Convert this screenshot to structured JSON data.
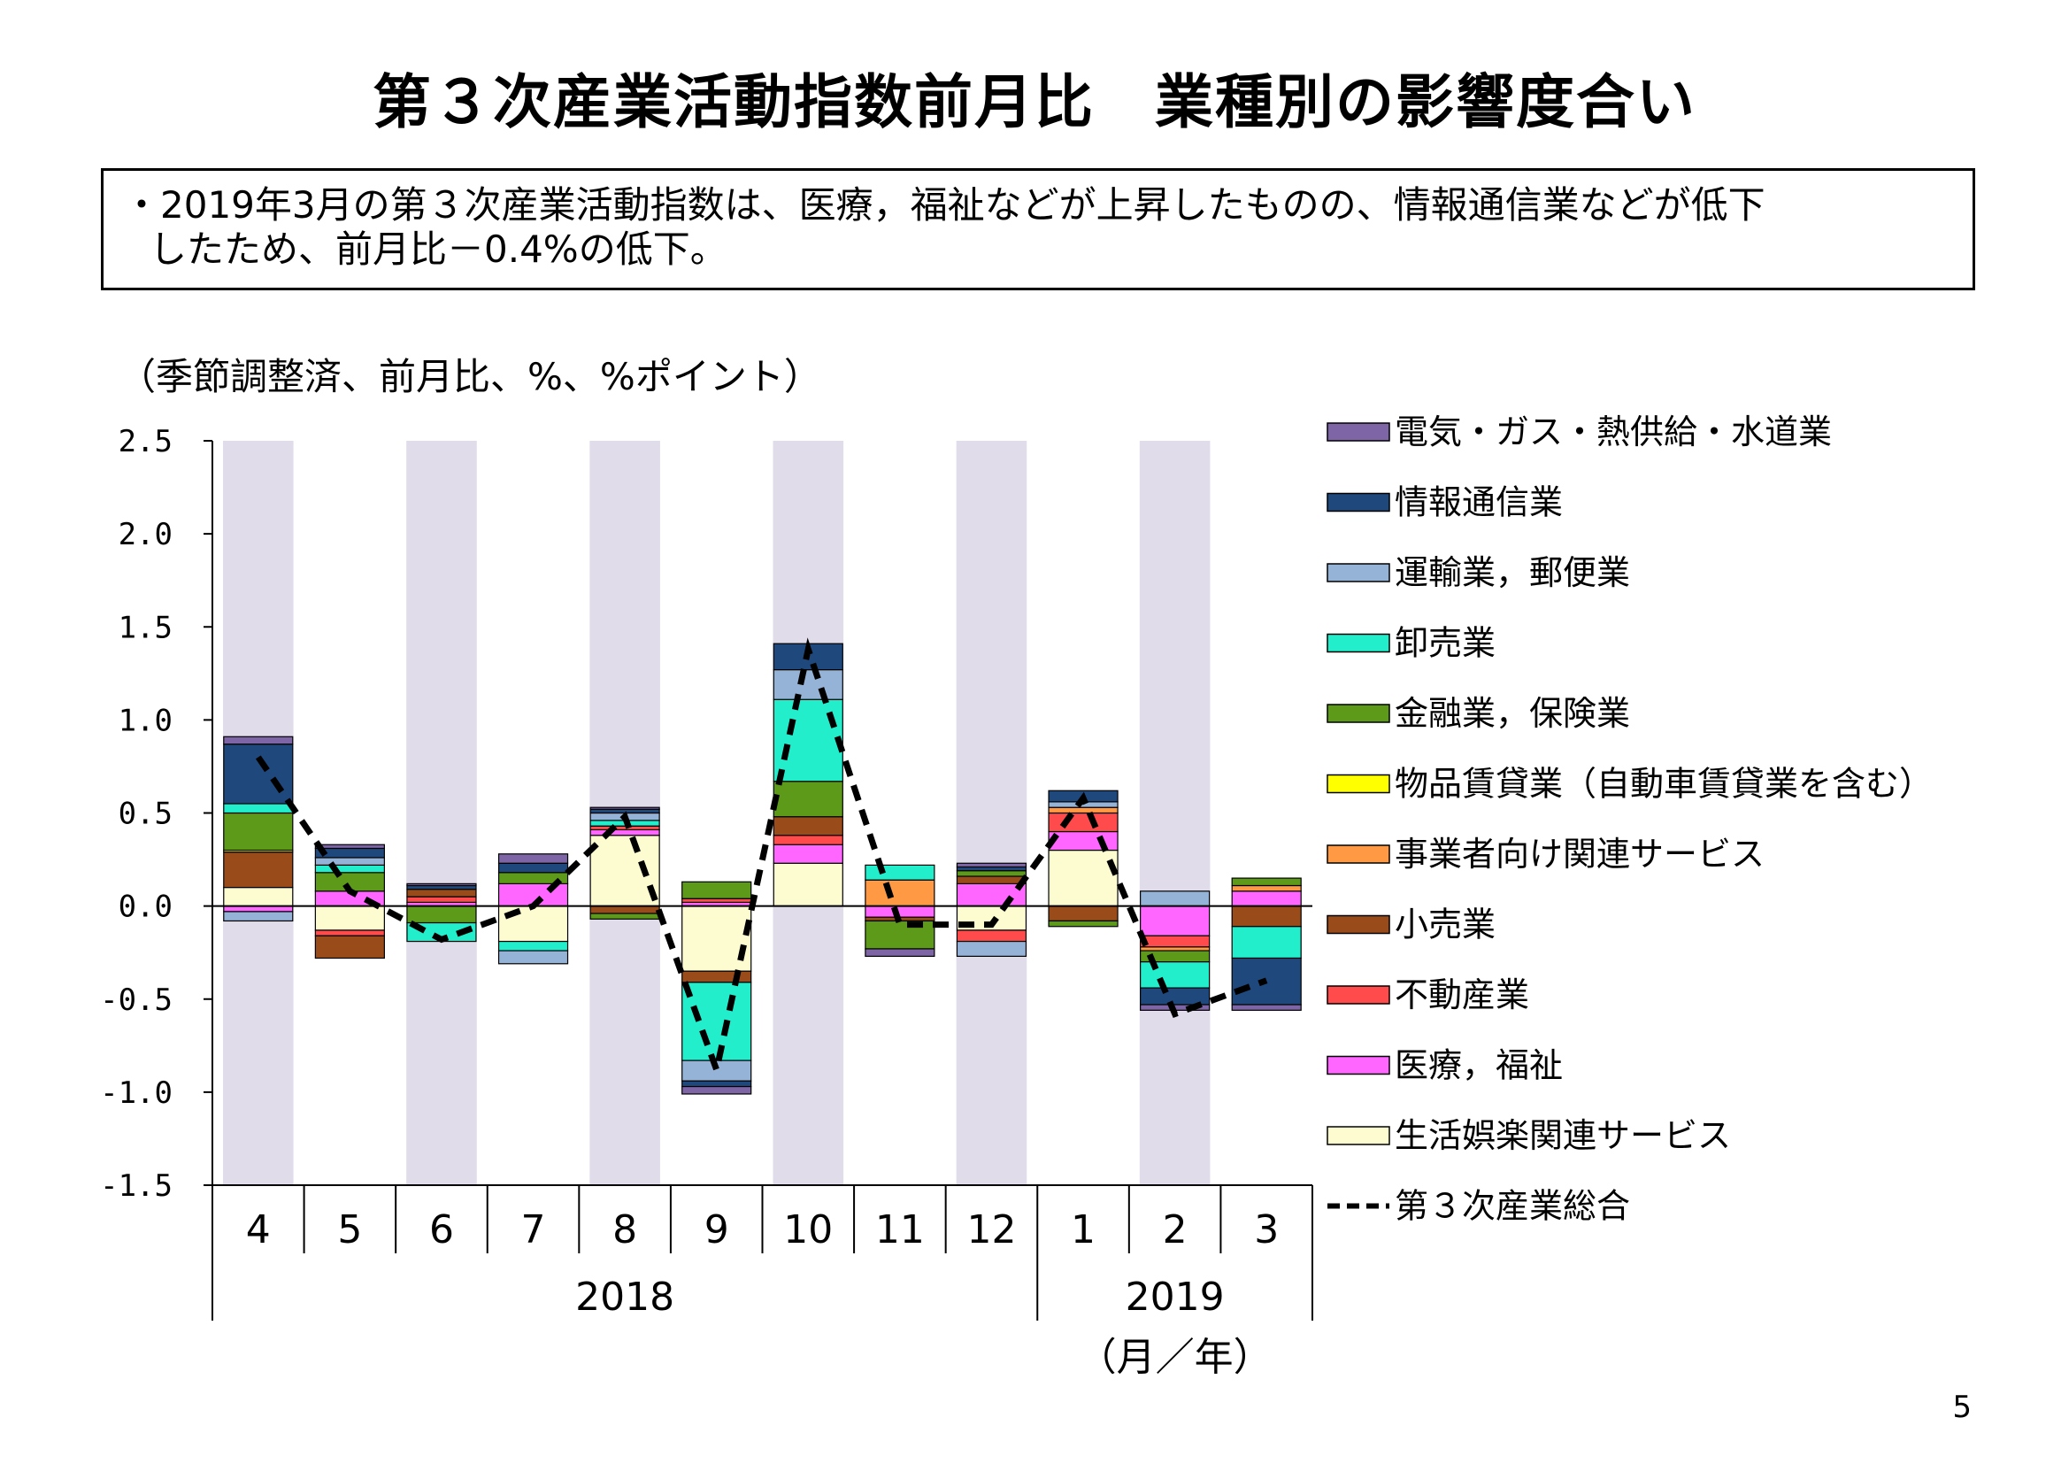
{
  "title": "第３次産業活動指数前月比　業種別の影響度合い",
  "summary": [
    "・2019年3月の第３次産業活動指数は、医療，福祉などが上昇したものの、情報通信業などが低下",
    "したため、前月比－0.4%の低下。"
  ],
  "units_note": "（季節調整済、前月比、%、%ポイント）",
  "page_number": "5",
  "chart_data": {
    "type": "bar",
    "stacked": true,
    "categories": [
      "4",
      "5",
      "6",
      "7",
      "8",
      "9",
      "10",
      "11",
      "12",
      "1",
      "2",
      "3"
    ],
    "years": [
      {
        "label": "2018",
        "from": 0,
        "to": 8
      },
      {
        "label": "2019",
        "from": 9,
        "to": 11
      }
    ],
    "x_unit": "（月／年）",
    "yticks": [
      "2.5",
      "2.0",
      "1.5",
      "1.0",
      "0.5",
      "0.0",
      "-0.5",
      "-1.0",
      "-1.5"
    ],
    "ylim": [
      -1.5,
      2.5
    ],
    "shaded_categories": [
      0,
      2,
      4,
      6,
      8,
      10
    ],
    "shade_color": "#e0dcea",
    "series": [
      {
        "name": "生活娯楽関連サービス",
        "color": "#fdfbd0",
        "values": [
          0.1,
          -0.13,
          0.0,
          -0.19,
          0.38,
          -0.35,
          0.23,
          0.0,
          -0.13,
          0.3,
          0.0,
          0.0
        ]
      },
      {
        "name": "医療，福祉",
        "color": "#ff66ff",
        "values": [
          -0.03,
          0.08,
          0.02,
          0.12,
          0.03,
          0.02,
          0.1,
          -0.06,
          0.12,
          0.1,
          -0.16,
          0.08
        ]
      },
      {
        "name": "不動産業",
        "color": "#ff4b4b",
        "values": [
          0.0,
          -0.03,
          0.03,
          0.0,
          0.02,
          0.02,
          0.05,
          0.0,
          -0.06,
          0.1,
          -0.06,
          0.0
        ]
      },
      {
        "name": "小売業",
        "color": "#994c1a",
        "values": [
          0.19,
          -0.12,
          0.04,
          0.0,
          -0.04,
          -0.06,
          0.1,
          -0.02,
          0.04,
          -0.08,
          0.0,
          -0.11
        ]
      },
      {
        "name": "事業者向け関連サービス",
        "color": "#ff9944",
        "values": [
          0.0,
          0.0,
          0.0,
          0.0,
          0.0,
          0.0,
          0.0,
          0.14,
          0.0,
          0.03,
          -0.02,
          0.03
        ]
      },
      {
        "name": "物品賃貸業（自動車賃貸業を含む）",
        "color": "#ffff00",
        "values": [
          0.01,
          0.0,
          0.0,
          0.0,
          0.0,
          0.0,
          0.0,
          0.0,
          0.0,
          0.0,
          0.0,
          0.0
        ]
      },
      {
        "name": "金融業，保険業",
        "color": "#5e9a1a",
        "values": [
          0.2,
          0.1,
          -0.09,
          0.06,
          -0.03,
          0.09,
          0.19,
          -0.15,
          0.03,
          -0.03,
          -0.06,
          0.04
        ]
      },
      {
        "name": "卸売業",
        "color": "#22eecc",
        "values": [
          0.05,
          0.04,
          -0.1,
          -0.05,
          0.03,
          -0.42,
          0.44,
          0.08,
          0.0,
          0.0,
          -0.14,
          -0.17
        ]
      },
      {
        "name": "運輸業，郵便業",
        "color": "#95b3d7",
        "values": [
          -0.05,
          0.04,
          0.0,
          -0.07,
          0.04,
          -0.11,
          0.16,
          0.0,
          -0.08,
          0.03,
          0.08,
          0.0
        ]
      },
      {
        "name": "情報通信業",
        "color": "#1f497d",
        "values": [
          0.32,
          0.05,
          0.02,
          0.05,
          0.02,
          -0.03,
          0.14,
          0.0,
          0.02,
          0.06,
          -0.09,
          -0.25
        ]
      },
      {
        "name": "電気・ガス・熱供給・水道業",
        "color": "#7e65a5",
        "values": [
          0.04,
          0.02,
          0.01,
          0.05,
          0.01,
          -0.04,
          0.0,
          -0.04,
          0.02,
          0.0,
          -0.03,
          -0.03
        ]
      }
    ],
    "total": {
      "name": "第３次産業総合",
      "values": [
        0.8,
        0.08,
        -0.18,
        0.0,
        0.48,
        -0.88,
        1.38,
        -0.1,
        -0.1,
        0.58,
        -0.58,
        -0.4
      ]
    },
    "legend_order": [
      "電気・ガス・熱供給・水道業",
      "情報通信業",
      "運輸業，郵便業",
      "卸売業",
      "金融業，保険業",
      "物品賃貸業（自動車賃貸業を含む）",
      "事業者向け関連サービス",
      "小売業",
      "不動産業",
      "医療，福祉",
      "生活娯楽関連サービス",
      "第３次産業総合"
    ],
    "legend_placement": "right"
  }
}
